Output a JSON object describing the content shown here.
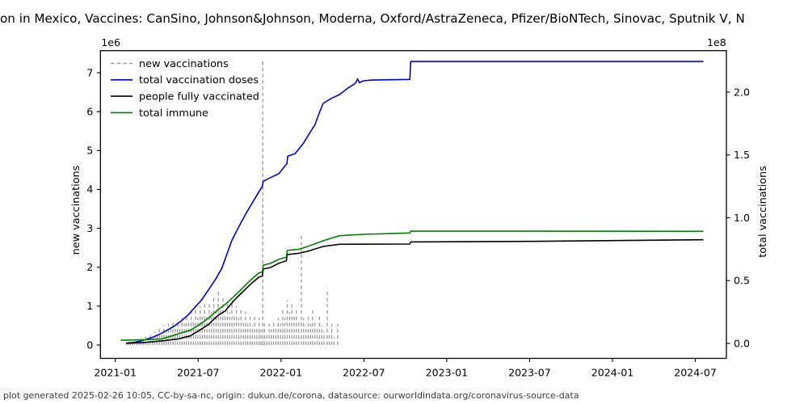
{
  "title": {
    "text": "on in Mexico, Vaccines: CanSino, Johnson&Johnson, Moderna, Oxford/AstraZeneca, Pfizer/BioNTech, Sinovac, Sputnik V, N"
  },
  "footer": {
    "text": "plot generated 2025-02-26 10:05, CC-by-sa-nc, origin: dukun.de/corona, datasource: ourworldindata.org/coronavirus-source-data"
  },
  "colors": {
    "new_vaccinations": "#9a9a9a",
    "total_doses": "#0000dd",
    "fully_vaccinated": "#000000",
    "total_immune": "#008000",
    "spine": "#000000",
    "footer_text": "#3c3c3c"
  },
  "axes": {
    "x": {
      "tick_labels": [
        "2021-01",
        "2021-07",
        "2022-01",
        "2022-07",
        "2023-01",
        "2023-07",
        "2024-01",
        "2024-07"
      ]
    },
    "y_left": {
      "label": "new vaccinations",
      "offset_text": "1e6",
      "tick_labels": [
        "0",
        "1",
        "2",
        "3",
        "4",
        "5",
        "6",
        "7"
      ],
      "tick_values": [
        0,
        1,
        2,
        3,
        4,
        5,
        6,
        7
      ]
    },
    "y_right": {
      "label": "total vaccinations",
      "offset_text": "1e8",
      "tick_labels": [
        "0.0",
        "0.5",
        "1.0",
        "1.5",
        "2.0"
      ],
      "tick_values": [
        0,
        0.5,
        1,
        1.5,
        2
      ]
    }
  },
  "legend": {
    "items": [
      {
        "label": "new vaccinations",
        "color": "#9a9a9a",
        "dashed": true
      },
      {
        "label": "total vaccination doses",
        "color": "#0000dd",
        "dashed": false
      },
      {
        "label": "people fully vaccinated",
        "color": "#000000",
        "dashed": false
      },
      {
        "label": "total immune",
        "color": "#008000",
        "dashed": false
      }
    ]
  },
  "chart_data": {
    "type": "line",
    "title": "Vaccination in Mexico (truncated in view)",
    "xlabel": "",
    "ylabel_left": "new vaccinations",
    "ylabel_right": "total vaccinations",
    "x_range_visible": [
      "2020-11-29",
      "2024-09-08"
    ],
    "grid": false,
    "legend_position": "upper-left",
    "series": [
      {
        "name": "new vaccinations",
        "axis": "left",
        "unit": "1e6",
        "style": "dashed-vertical-spikes",
        "color": "#9a9a9a",
        "points": [
          [
            "2021-01-26",
            0.05
          ],
          [
            "2021-01-30",
            0.09
          ],
          [
            "2021-02-03",
            0.06
          ],
          [
            "2021-02-08",
            0.13
          ],
          [
            "2021-02-12",
            0.08
          ],
          [
            "2021-02-17",
            0.15
          ],
          [
            "2021-02-22",
            0.1
          ],
          [
            "2021-02-27",
            0.18
          ],
          [
            "2021-03-04",
            0.12
          ],
          [
            "2021-03-09",
            0.22
          ],
          [
            "2021-03-14",
            0.15
          ],
          [
            "2021-03-19",
            0.3
          ],
          [
            "2021-03-24",
            0.2
          ],
          [
            "2021-03-29",
            0.35
          ],
          [
            "2021-04-03",
            0.25
          ],
          [
            "2021-04-08",
            0.42
          ],
          [
            "2021-04-13",
            0.3
          ],
          [
            "2021-04-18",
            0.5
          ],
          [
            "2021-04-23",
            0.35
          ],
          [
            "2021-04-28",
            0.55
          ],
          [
            "2021-05-03",
            0.4
          ],
          [
            "2021-05-08",
            0.6
          ],
          [
            "2021-05-13",
            0.45
          ],
          [
            "2021-05-18",
            0.65
          ],
          [
            "2021-05-23",
            0.5
          ],
          [
            "2021-05-28",
            0.7
          ],
          [
            "2021-06-02",
            0.55
          ],
          [
            "2021-06-07",
            0.8
          ],
          [
            "2021-06-12",
            0.6
          ],
          [
            "2021-06-17",
            0.9
          ],
          [
            "2021-06-22",
            0.65
          ],
          [
            "2021-06-27",
            0.95
          ],
          [
            "2021-07-02",
            0.7
          ],
          [
            "2021-07-07",
            1.0
          ],
          [
            "2021-07-12",
            0.75
          ],
          [
            "2021-07-17",
            1.05
          ],
          [
            "2021-07-22",
            0.8
          ],
          [
            "2021-07-27",
            1.1
          ],
          [
            "2021-08-01",
            0.85
          ],
          [
            "2021-08-06",
            1.25
          ],
          [
            "2021-08-11",
            0.9
          ],
          [
            "2021-08-16",
            1.45
          ],
          [
            "2021-08-21",
            0.95
          ],
          [
            "2021-08-26",
            1.2
          ],
          [
            "2021-08-31",
            0.8
          ],
          [
            "2021-09-05",
            1.1
          ],
          [
            "2021-09-10",
            0.85
          ],
          [
            "2021-09-15",
            1.15
          ],
          [
            "2021-09-20",
            0.75
          ],
          [
            "2021-09-25",
            1.0
          ],
          [
            "2021-09-30",
            0.7
          ],
          [
            "2021-10-05",
            0.9
          ],
          [
            "2021-10-10",
            0.6
          ],
          [
            "2021-10-15",
            0.85
          ],
          [
            "2021-10-20",
            0.55
          ],
          [
            "2021-10-25",
            0.8
          ],
          [
            "2021-10-30",
            0.5
          ],
          [
            "2021-11-04",
            0.75
          ],
          [
            "2021-11-09",
            0.45
          ],
          [
            "2021-11-14",
            0.7
          ],
          [
            "2021-11-18",
            0.4
          ],
          [
            "2021-11-22",
            7.31
          ],
          [
            "2021-11-26",
            0.55
          ],
          [
            "2021-12-01",
            0.3
          ],
          [
            "2021-12-06",
            0.55
          ],
          [
            "2021-12-11",
            0.4
          ],
          [
            "2021-12-16",
            0.65
          ],
          [
            "2021-12-21",
            0.45
          ],
          [
            "2021-12-26",
            0.7
          ],
          [
            "2021-12-31",
            0.55
          ],
          [
            "2022-01-05",
            0.95
          ],
          [
            "2022-01-10",
            0.7
          ],
          [
            "2022-01-15",
            1.15
          ],
          [
            "2022-01-20",
            0.85
          ],
          [
            "2022-01-25",
            1.05
          ],
          [
            "2022-01-30",
            0.75
          ],
          [
            "2022-02-04",
            0.9
          ],
          [
            "2022-02-09",
            0.6
          ],
          [
            "2022-02-15",
            2.85
          ],
          [
            "2022-02-20",
            0.7
          ],
          [
            "2022-02-25",
            0.5
          ],
          [
            "2022-03-02",
            0.8
          ],
          [
            "2022-03-07",
            0.55
          ],
          [
            "2022-03-12",
            0.95
          ],
          [
            "2022-03-17",
            0.65
          ],
          [
            "2022-03-22",
            0.45
          ],
          [
            "2022-03-27",
            0.75
          ],
          [
            "2022-04-01",
            0.5
          ],
          [
            "2022-04-06",
            0.35
          ],
          [
            "2022-04-13",
            1.45
          ],
          [
            "2022-04-18",
            0.3
          ],
          [
            "2022-04-23",
            0.55
          ],
          [
            "2022-04-28",
            0.2
          ],
          [
            "2022-05-06",
            0.54
          ]
        ]
      },
      {
        "name": "total vaccination doses",
        "axis": "right",
        "unit": "1e8",
        "style": "solid",
        "color": "#0000dd",
        "points": [
          [
            "2021-01-25",
            0.002
          ],
          [
            "2021-02-10",
            0.008
          ],
          [
            "2021-02-25",
            0.018
          ],
          [
            "2021-03-10",
            0.032
          ],
          [
            "2021-03-25",
            0.05
          ],
          [
            "2021-04-10",
            0.075
          ],
          [
            "2021-04-25",
            0.105
          ],
          [
            "2021-05-10",
            0.135
          ],
          [
            "2021-05-25",
            0.175
          ],
          [
            "2021-06-10",
            0.225
          ],
          [
            "2021-06-25",
            0.285
          ],
          [
            "2021-07-10",
            0.345
          ],
          [
            "2021-07-25",
            0.425
          ],
          [
            "2021-08-10",
            0.51
          ],
          [
            "2021-08-24",
            0.6
          ],
          [
            "2021-09-05",
            0.72
          ],
          [
            "2021-09-15",
            0.82
          ],
          [
            "2021-09-29",
            0.92
          ],
          [
            "2021-10-17",
            1.04
          ],
          [
            "2021-11-04",
            1.15
          ],
          [
            "2021-11-21",
            1.25
          ],
          [
            "2021-11-23",
            1.29
          ],
          [
            "2021-12-09",
            1.32
          ],
          [
            "2021-12-27",
            1.35
          ],
          [
            "2022-01-14",
            1.43
          ],
          [
            "2022-01-16",
            1.49
          ],
          [
            "2022-02-01",
            1.51
          ],
          [
            "2022-02-19",
            1.59
          ],
          [
            "2022-03-08",
            1.69
          ],
          [
            "2022-03-17",
            1.74
          ],
          [
            "2022-03-26",
            1.83
          ],
          [
            "2022-04-04",
            1.91
          ],
          [
            "2022-04-22",
            1.95
          ],
          [
            "2022-05-10",
            1.98
          ],
          [
            "2022-05-28",
            2.03
          ],
          [
            "2022-06-14",
            2.07
          ],
          [
            "2022-06-19",
            2.105
          ],
          [
            "2022-06-23",
            2.075
          ],
          [
            "2022-07-02",
            2.09
          ],
          [
            "2022-07-20",
            2.096
          ],
          [
            "2022-10-12",
            2.101
          ],
          [
            "2022-10-14",
            2.244
          ],
          [
            "2024-07-20",
            2.244
          ]
        ]
      },
      {
        "name": "people fully vaccinated",
        "axis": "right",
        "unit": "1e8",
        "style": "solid",
        "color": "#000000",
        "points": [
          [
            "2021-01-25",
            0.001
          ],
          [
            "2021-03-01",
            0.006
          ],
          [
            "2021-04-13",
            0.02
          ],
          [
            "2021-05-19",
            0.035
          ],
          [
            "2021-06-15",
            0.06
          ],
          [
            "2021-07-02",
            0.096
          ],
          [
            "2021-07-25",
            0.15
          ],
          [
            "2021-08-16",
            0.225
          ],
          [
            "2021-08-31",
            0.257
          ],
          [
            "2021-09-20",
            0.343
          ],
          [
            "2021-10-08",
            0.407
          ],
          [
            "2021-10-26",
            0.471
          ],
          [
            "2021-11-13",
            0.527
          ],
          [
            "2021-11-21",
            0.536
          ],
          [
            "2021-11-23",
            0.592
          ],
          [
            "2021-12-09",
            0.604
          ],
          [
            "2021-12-27",
            0.637
          ],
          [
            "2022-01-13",
            0.658
          ],
          [
            "2022-01-15",
            0.707
          ],
          [
            "2022-02-10",
            0.718
          ],
          [
            "2022-03-01",
            0.733
          ],
          [
            "2022-04-04",
            0.772
          ],
          [
            "2022-05-10",
            0.789
          ],
          [
            "2022-10-12",
            0.791
          ],
          [
            "2022-10-14",
            0.808
          ],
          [
            "2023-07-11",
            0.812
          ],
          [
            "2024-07-20",
            0.825
          ]
        ]
      },
      {
        "name": "total immune",
        "axis": "right",
        "unit": "1e8",
        "style": "solid",
        "color": "#008000",
        "points": [
          [
            "2021-01-13",
            0.025
          ],
          [
            "2021-03-01",
            0.028
          ],
          [
            "2021-04-13",
            0.035
          ],
          [
            "2021-05-19",
            0.075
          ],
          [
            "2021-06-15",
            0.105
          ],
          [
            "2021-07-02",
            0.14
          ],
          [
            "2021-07-25",
            0.2
          ],
          [
            "2021-08-16",
            0.27
          ],
          [
            "2021-08-31",
            0.31
          ],
          [
            "2021-09-20",
            0.375
          ],
          [
            "2021-10-08",
            0.439
          ],
          [
            "2021-10-26",
            0.504
          ],
          [
            "2021-11-13",
            0.56
          ],
          [
            "2021-11-21",
            0.568
          ],
          [
            "2021-11-23",
            0.622
          ],
          [
            "2021-12-09",
            0.637
          ],
          [
            "2021-12-27",
            0.669
          ],
          [
            "2022-01-13",
            0.686
          ],
          [
            "2022-01-15",
            0.74
          ],
          [
            "2022-02-10",
            0.75
          ],
          [
            "2022-03-01",
            0.772
          ],
          [
            "2022-04-04",
            0.817
          ],
          [
            "2022-05-10",
            0.857
          ],
          [
            "2022-07-02",
            0.868
          ],
          [
            "2022-10-12",
            0.879
          ],
          [
            "2022-10-14",
            0.894
          ],
          [
            "2024-07-20",
            0.892
          ]
        ]
      }
    ]
  }
}
